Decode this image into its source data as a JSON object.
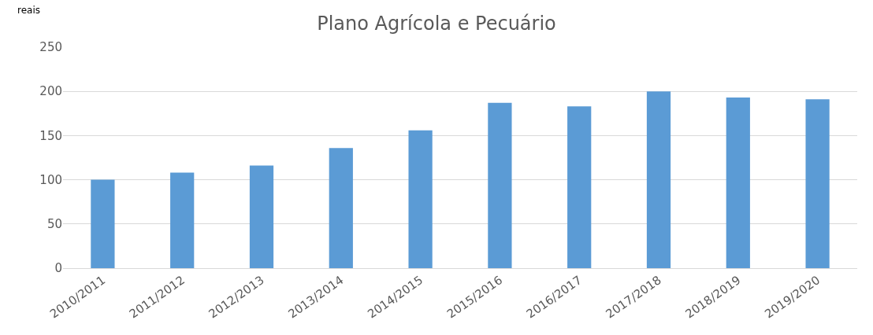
{
  "chart_data": {
    "type": "bar",
    "title": "Plano Agrícola e Pecuário",
    "categories": [
      "2010/2011",
      "2011/2012",
      "2012/2013",
      "2013/2014",
      "2014/2015",
      "2015/2016",
      "2016/2017",
      "2017/2018",
      "2018/2019",
      "2019/2020"
    ],
    "values": [
      100,
      108,
      116,
      136,
      156,
      187,
      183,
      200,
      193,
      191
    ],
    "color": "#5b9bd5",
    "ylim": [
      0,
      250
    ],
    "yticks": [
      0,
      50,
      100,
      150,
      200,
      250
    ],
    "grid": "y",
    "annotations": [
      "reais"
    ]
  }
}
